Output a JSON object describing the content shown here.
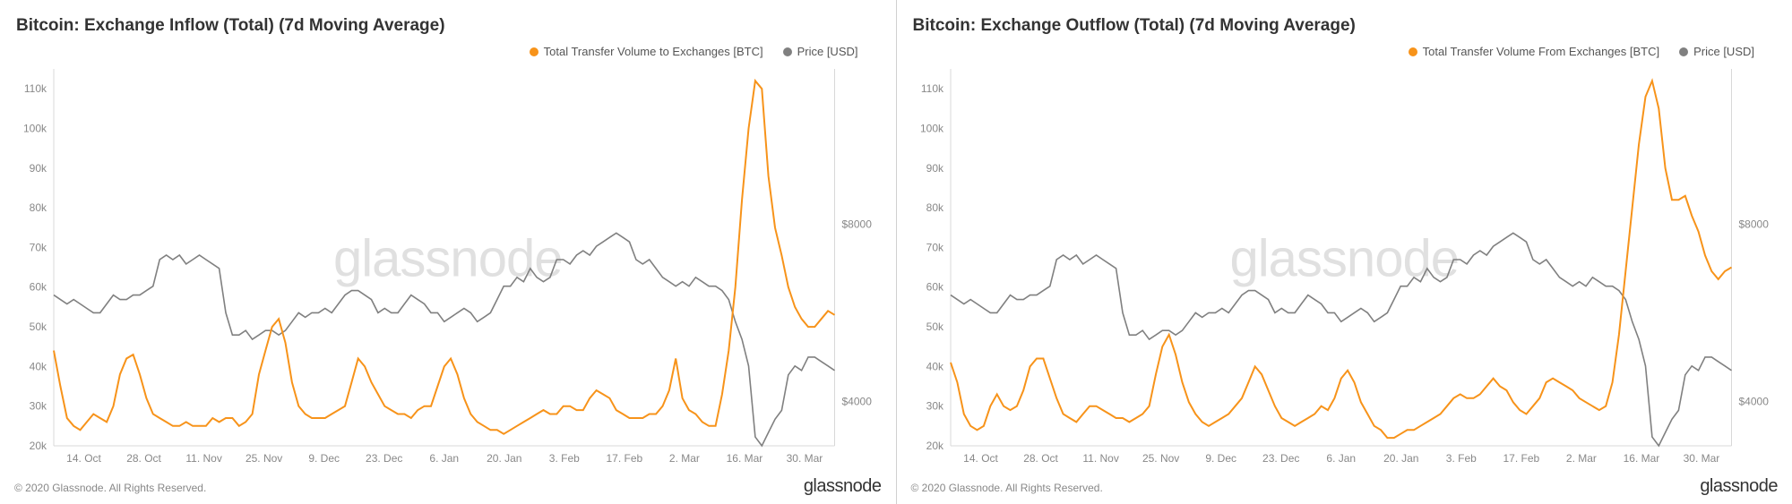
{
  "watermark": "glassnode",
  "brand": "glassnode",
  "copyright": "© 2020 Glassnode. All Rights Reserved.",
  "common": {
    "volume_color": "#f7931a",
    "price_color": "#808080",
    "grid_color": "#dddddd",
    "text_color": "#888888",
    "title_color": "#333333",
    "x_labels": [
      "14. Oct",
      "28. Oct",
      "11. Nov",
      "25. Nov",
      "9. Dec",
      "23. Dec",
      "6. Jan",
      "20. Jan",
      "3. Feb",
      "17. Feb",
      "2. Mar",
      "16. Mar",
      "30. Mar"
    ],
    "y_left_min": 20000,
    "y_left_max": 115000,
    "y_left_ticks": [
      20000,
      30000,
      40000,
      50000,
      60000,
      70000,
      80000,
      90000,
      100000,
      110000
    ],
    "y_left_tick_labels": [
      "20k",
      "30k",
      "40k",
      "50k",
      "60k",
      "70k",
      "80k",
      "90k",
      "100k",
      "110k"
    ],
    "y_right_ticks": [
      4000,
      8000
    ],
    "y_right_tick_labels": [
      "$4000",
      "$8000"
    ],
    "price_series": [
      64,
      63,
      62,
      63,
      62,
      61,
      60,
      60,
      62,
      64,
      63,
      63,
      64,
      64,
      65,
      66,
      72,
      73,
      72,
      73,
      71,
      72,
      73,
      72,
      71,
      70,
      60,
      55,
      55,
      56,
      54,
      55,
      56,
      56,
      55,
      56,
      58,
      60,
      59,
      60,
      60,
      61,
      60,
      62,
      64,
      65,
      65,
      64,
      63,
      60,
      61,
      60,
      60,
      62,
      64,
      63,
      62,
      60,
      60,
      58,
      59,
      60,
      61,
      60,
      58,
      59,
      60,
      63,
      66,
      66,
      68,
      67,
      70,
      68,
      67,
      68,
      72,
      72,
      71,
      73,
      74,
      73,
      75,
      76,
      77,
      78,
      77,
      76,
      72,
      71,
      72,
      70,
      68,
      67,
      66,
      67,
      66,
      68,
      67,
      66,
      66,
      65,
      63,
      58,
      54,
      48,
      32,
      30,
      33,
      36,
      38,
      46,
      48,
      47,
      50,
      50,
      49,
      48,
      47
    ]
  },
  "panels": [
    {
      "title": "Bitcoin: Exchange Inflow (Total) (7d Moving Average)",
      "legend_volume": "Total Transfer Volume to Exchanges [BTC]",
      "legend_price": "Price [USD]",
      "volume_series": [
        44,
        35,
        27,
        25,
        24,
        26,
        28,
        27,
        26,
        30,
        38,
        42,
        43,
        38,
        32,
        28,
        27,
        26,
        25,
        25,
        26,
        25,
        25,
        25,
        27,
        26,
        27,
        27,
        25,
        26,
        28,
        38,
        44,
        50,
        52,
        46,
        36,
        30,
        28,
        27,
        27,
        27,
        28,
        29,
        30,
        36,
        42,
        40,
        36,
        33,
        30,
        29,
        28,
        28,
        27,
        29,
        30,
        30,
        35,
        40,
        42,
        38,
        32,
        28,
        26,
        25,
        24,
        24,
        23,
        24,
        25,
        26,
        27,
        28,
        29,
        28,
        28,
        30,
        30,
        29,
        29,
        32,
        34,
        33,
        32,
        29,
        28,
        27,
        27,
        27,
        28,
        28,
        30,
        34,
        42,
        32,
        29,
        28,
        26,
        25,
        25,
        33,
        44,
        60,
        82,
        100,
        112,
        110,
        88,
        75,
        68,
        60,
        55,
        52,
        50,
        50,
        52,
        54,
        53
      ]
    },
    {
      "title": "Bitcoin: Exchange Outflow (Total) (7d Moving Average)",
      "legend_volume": "Total Transfer Volume From Exchanges [BTC]",
      "legend_price": "Price [USD]",
      "volume_series": [
        41,
        36,
        28,
        25,
        24,
        25,
        30,
        33,
        30,
        29,
        30,
        34,
        40,
        42,
        42,
        37,
        32,
        28,
        27,
        26,
        28,
        30,
        30,
        29,
        28,
        27,
        27,
        26,
        27,
        28,
        30,
        38,
        45,
        48,
        43,
        36,
        31,
        28,
        26,
        25,
        26,
        27,
        28,
        30,
        32,
        36,
        40,
        38,
        34,
        30,
        27,
        26,
        25,
        26,
        27,
        28,
        30,
        29,
        32,
        37,
        39,
        36,
        31,
        28,
        25,
        24,
        22,
        22,
        23,
        24,
        24,
        25,
        26,
        27,
        28,
        30,
        32,
        33,
        32,
        32,
        33,
        35,
        37,
        35,
        34,
        31,
        29,
        28,
        30,
        32,
        36,
        37,
        36,
        35,
        34,
        32,
        31,
        30,
        29,
        30,
        36,
        48,
        64,
        80,
        96,
        108,
        112,
        105,
        90,
        82,
        82,
        83,
        78,
        74,
        68,
        64,
        62,
        64,
        65
      ]
    }
  ]
}
